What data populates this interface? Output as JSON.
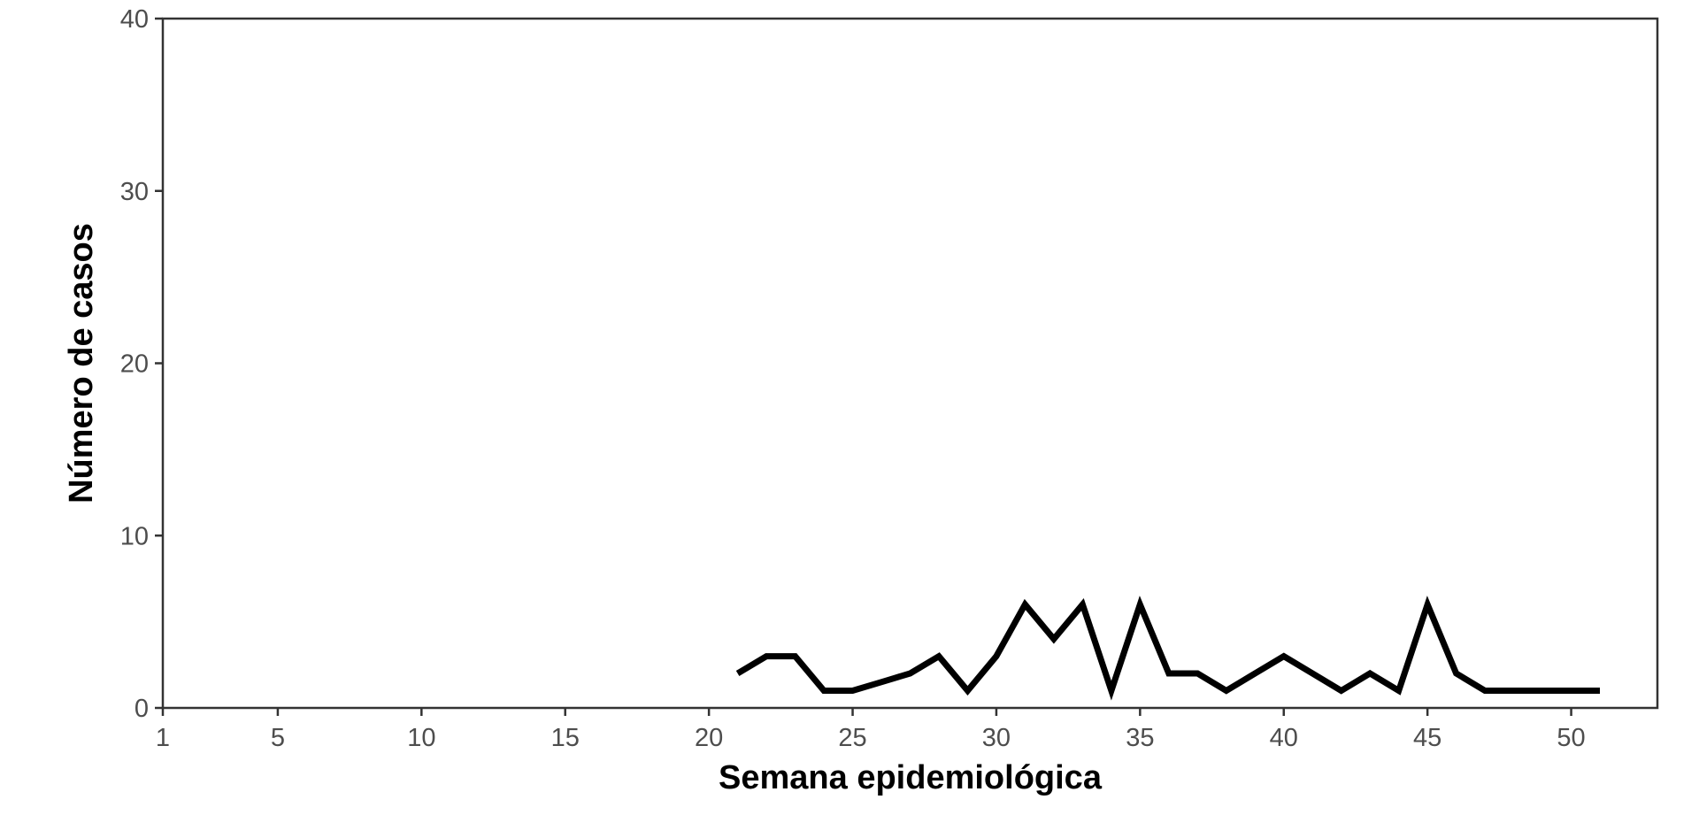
{
  "chart_data": {
    "type": "line",
    "xlabel": "Semana epidemiológica",
    "ylabel": "Número de casos",
    "xlim": [
      1,
      53
    ],
    "ylim": [
      0,
      40
    ],
    "x_ticks": [
      1,
      5,
      10,
      15,
      20,
      25,
      30,
      35,
      40,
      45,
      50
    ],
    "y_ticks": [
      0,
      10,
      20,
      30,
      40
    ],
    "grid": false,
    "legend": "none",
    "colors": {
      "line": "#000000",
      "axis": "#333333",
      "tick_text": "#4d4d4d"
    },
    "series": [
      {
        "x": [
          21,
          22,
          23,
          24,
          25,
          26,
          27,
          28,
          29,
          30,
          31,
          32,
          33,
          34,
          35,
          36,
          37,
          38,
          39,
          40,
          41,
          42,
          43,
          44,
          45,
          46,
          47,
          48,
          49,
          50,
          51
        ],
        "values": [
          2,
          3,
          3,
          1,
          1,
          1.5,
          2,
          3,
          1,
          3,
          6,
          4,
          6,
          1,
          6,
          2,
          2,
          1,
          2,
          3,
          2,
          1,
          2,
          1,
          6,
          2,
          1,
          1,
          1,
          1,
          1
        ]
      }
    ]
  }
}
